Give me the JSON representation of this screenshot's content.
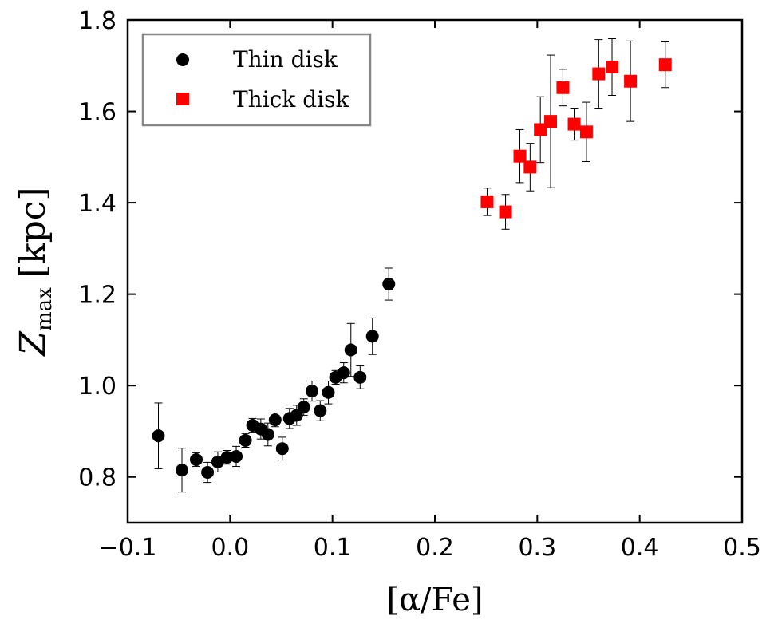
{
  "chart_data": {
    "type": "scatter",
    "xlabel": "[α/Fe]",
    "ylabel_symbol": "Z",
    "ylabel_subscript": "max",
    "ylabel_unit": "[kpc]",
    "xlim": [
      -0.1,
      0.5
    ],
    "ylim": [
      0.7,
      1.8
    ],
    "xticks": [
      -0.1,
      0.0,
      0.1,
      0.2,
      0.3,
      0.4,
      0.5
    ],
    "xtick_labels": [
      "−0.1",
      "0.0",
      "0.1",
      "0.2",
      "0.3",
      "0.4",
      "0.5"
    ],
    "yticks": [
      0.8,
      1.0,
      1.2,
      1.4,
      1.6,
      1.8
    ],
    "ytick_labels": [
      "0.8",
      "1.0",
      "1.2",
      "1.4",
      "1.6",
      "1.8"
    ],
    "grid": false,
    "legend_position": "top-left",
    "series": [
      {
        "name": "Thin disk",
        "marker": "circle",
        "color": "#000000",
        "points": [
          {
            "x": -0.07,
            "y": 0.89,
            "err": 0.072
          },
          {
            "x": -0.047,
            "y": 0.815,
            "err": 0.048
          },
          {
            "x": -0.033,
            "y": 0.838,
            "err": 0.015
          },
          {
            "x": -0.022,
            "y": 0.81,
            "err": 0.022
          },
          {
            "x": -0.012,
            "y": 0.833,
            "err": 0.022
          },
          {
            "x": -0.003,
            "y": 0.843,
            "err": 0.015
          },
          {
            "x": 0.006,
            "y": 0.845,
            "err": 0.022
          },
          {
            "x": 0.015,
            "y": 0.88,
            "err": 0.015
          },
          {
            "x": 0.022,
            "y": 0.913,
            "err": 0.015
          },
          {
            "x": 0.03,
            "y": 0.905,
            "err": 0.022
          },
          {
            "x": 0.037,
            "y": 0.893,
            "err": 0.025
          },
          {
            "x": 0.044,
            "y": 0.925,
            "err": 0.015
          },
          {
            "x": 0.051,
            "y": 0.862,
            "err": 0.025
          },
          {
            "x": 0.058,
            "y": 0.928,
            "err": 0.022
          },
          {
            "x": 0.065,
            "y": 0.935,
            "err": 0.022
          },
          {
            "x": 0.072,
            "y": 0.953,
            "err": 0.018
          },
          {
            "x": 0.08,
            "y": 0.988,
            "err": 0.022
          },
          {
            "x": 0.088,
            "y": 0.945,
            "err": 0.022
          },
          {
            "x": 0.096,
            "y": 0.985,
            "err": 0.025
          },
          {
            "x": 0.103,
            "y": 1.018,
            "err": 0.015
          },
          {
            "x": 0.111,
            "y": 1.028,
            "err": 0.022
          },
          {
            "x": 0.118,
            "y": 1.078,
            "err": 0.058
          },
          {
            "x": 0.127,
            "y": 1.018,
            "err": 0.025
          },
          {
            "x": 0.139,
            "y": 1.108,
            "err": 0.04
          },
          {
            "x": 0.155,
            "y": 1.222,
            "err": 0.035
          }
        ]
      },
      {
        "name": "Thick disk",
        "marker": "square",
        "color": "#ff0000",
        "points": [
          {
            "x": 0.251,
            "y": 1.402,
            "err": 0.03
          },
          {
            "x": 0.269,
            "y": 1.38,
            "err": 0.038
          },
          {
            "x": 0.283,
            "y": 1.502,
            "err": 0.058
          },
          {
            "x": 0.293,
            "y": 1.478,
            "err": 0.052
          },
          {
            "x": 0.303,
            "y": 1.56,
            "err": 0.072
          },
          {
            "x": 0.313,
            "y": 1.578,
            "err": 0.145
          },
          {
            "x": 0.325,
            "y": 1.652,
            "err": 0.04
          },
          {
            "x": 0.336,
            "y": 1.572,
            "err": 0.035
          },
          {
            "x": 0.348,
            "y": 1.555,
            "err": 0.065
          },
          {
            "x": 0.36,
            "y": 1.682,
            "err": 0.075
          },
          {
            "x": 0.373,
            "y": 1.697,
            "err": 0.062
          },
          {
            "x": 0.391,
            "y": 1.666,
            "err": 0.088
          },
          {
            "x": 0.425,
            "y": 1.702,
            "err": 0.05
          }
        ]
      }
    ]
  }
}
